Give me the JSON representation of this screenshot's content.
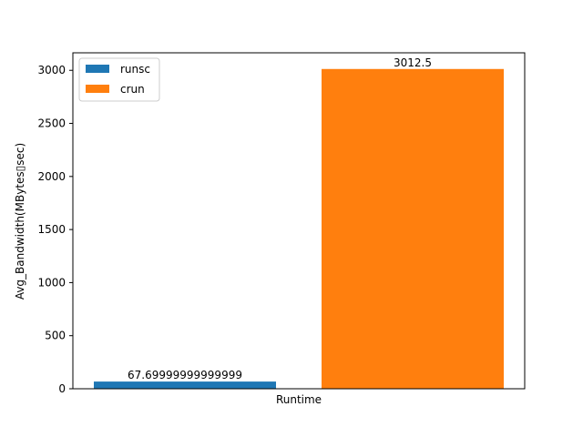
{
  "chart_data": {
    "type": "bar",
    "xlabel": "Runtime",
    "ylabel": "Avg_Bandwidth(MBytes▯sec)",
    "ylim": [
      0,
      3165
    ],
    "yticks": [
      0,
      500,
      1000,
      1500,
      2000,
      2500,
      3000
    ],
    "grid": false,
    "legend_position": "upper left",
    "series": [
      {
        "name": "runsc",
        "value": 67.69999999999999,
        "label": "67.69999999999999",
        "color": "#1f77b4"
      },
      {
        "name": "crun",
        "value": 3012.5,
        "label": "3012.5",
        "color": "#ff7f0e"
      }
    ]
  }
}
